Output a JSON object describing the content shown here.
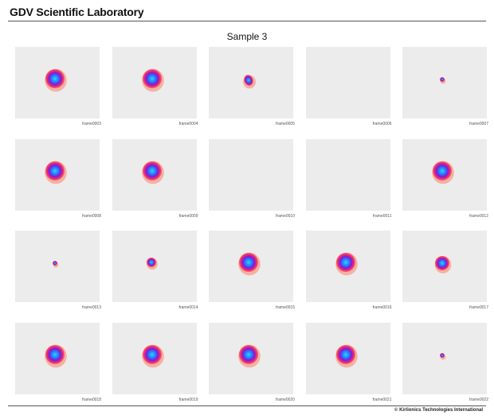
{
  "header": {
    "lab_title": "GDV Scientific Laboratory",
    "sample_title": "Sample 3"
  },
  "colors": {
    "frame_background": "#ececec",
    "glow_outer": "#ff6a4d",
    "glow_ring": "#e0208c",
    "glow_mid": "#7a1fd6",
    "glow_core": "#2a7bff",
    "glow_center": "#22d8ff"
  },
  "frames": [
    {
      "label": "frame0003",
      "glow": "large"
    },
    {
      "label": "frame0004",
      "glow": "large"
    },
    {
      "label": "frame0005",
      "glow": "irregular"
    },
    {
      "label": "frame0006",
      "glow": "none"
    },
    {
      "label": "frame0007",
      "glow": "tiny"
    },
    {
      "label": "frame0008",
      "glow": "large"
    },
    {
      "label": "frame0009",
      "glow": "large"
    },
    {
      "label": "frame0010",
      "glow": "none"
    },
    {
      "label": "frame0011",
      "glow": "none"
    },
    {
      "label": "frame0012",
      "glow": "large"
    },
    {
      "label": "frame0013",
      "glow": "tiny"
    },
    {
      "label": "frame0014",
      "glow": "small"
    },
    {
      "label": "frame0015",
      "glow": "large"
    },
    {
      "label": "frame0016",
      "glow": "large"
    },
    {
      "label": "frame0017",
      "glow": "medium"
    },
    {
      "label": "frame0018",
      "glow": "large"
    },
    {
      "label": "frame0019",
      "glow": "large"
    },
    {
      "label": "frame0020",
      "glow": "large"
    },
    {
      "label": "frame0021",
      "glow": "large"
    },
    {
      "label": "frame0022",
      "glow": "tiny"
    }
  ],
  "footer": {
    "copyright": "© Kirlionics Technologies International"
  }
}
